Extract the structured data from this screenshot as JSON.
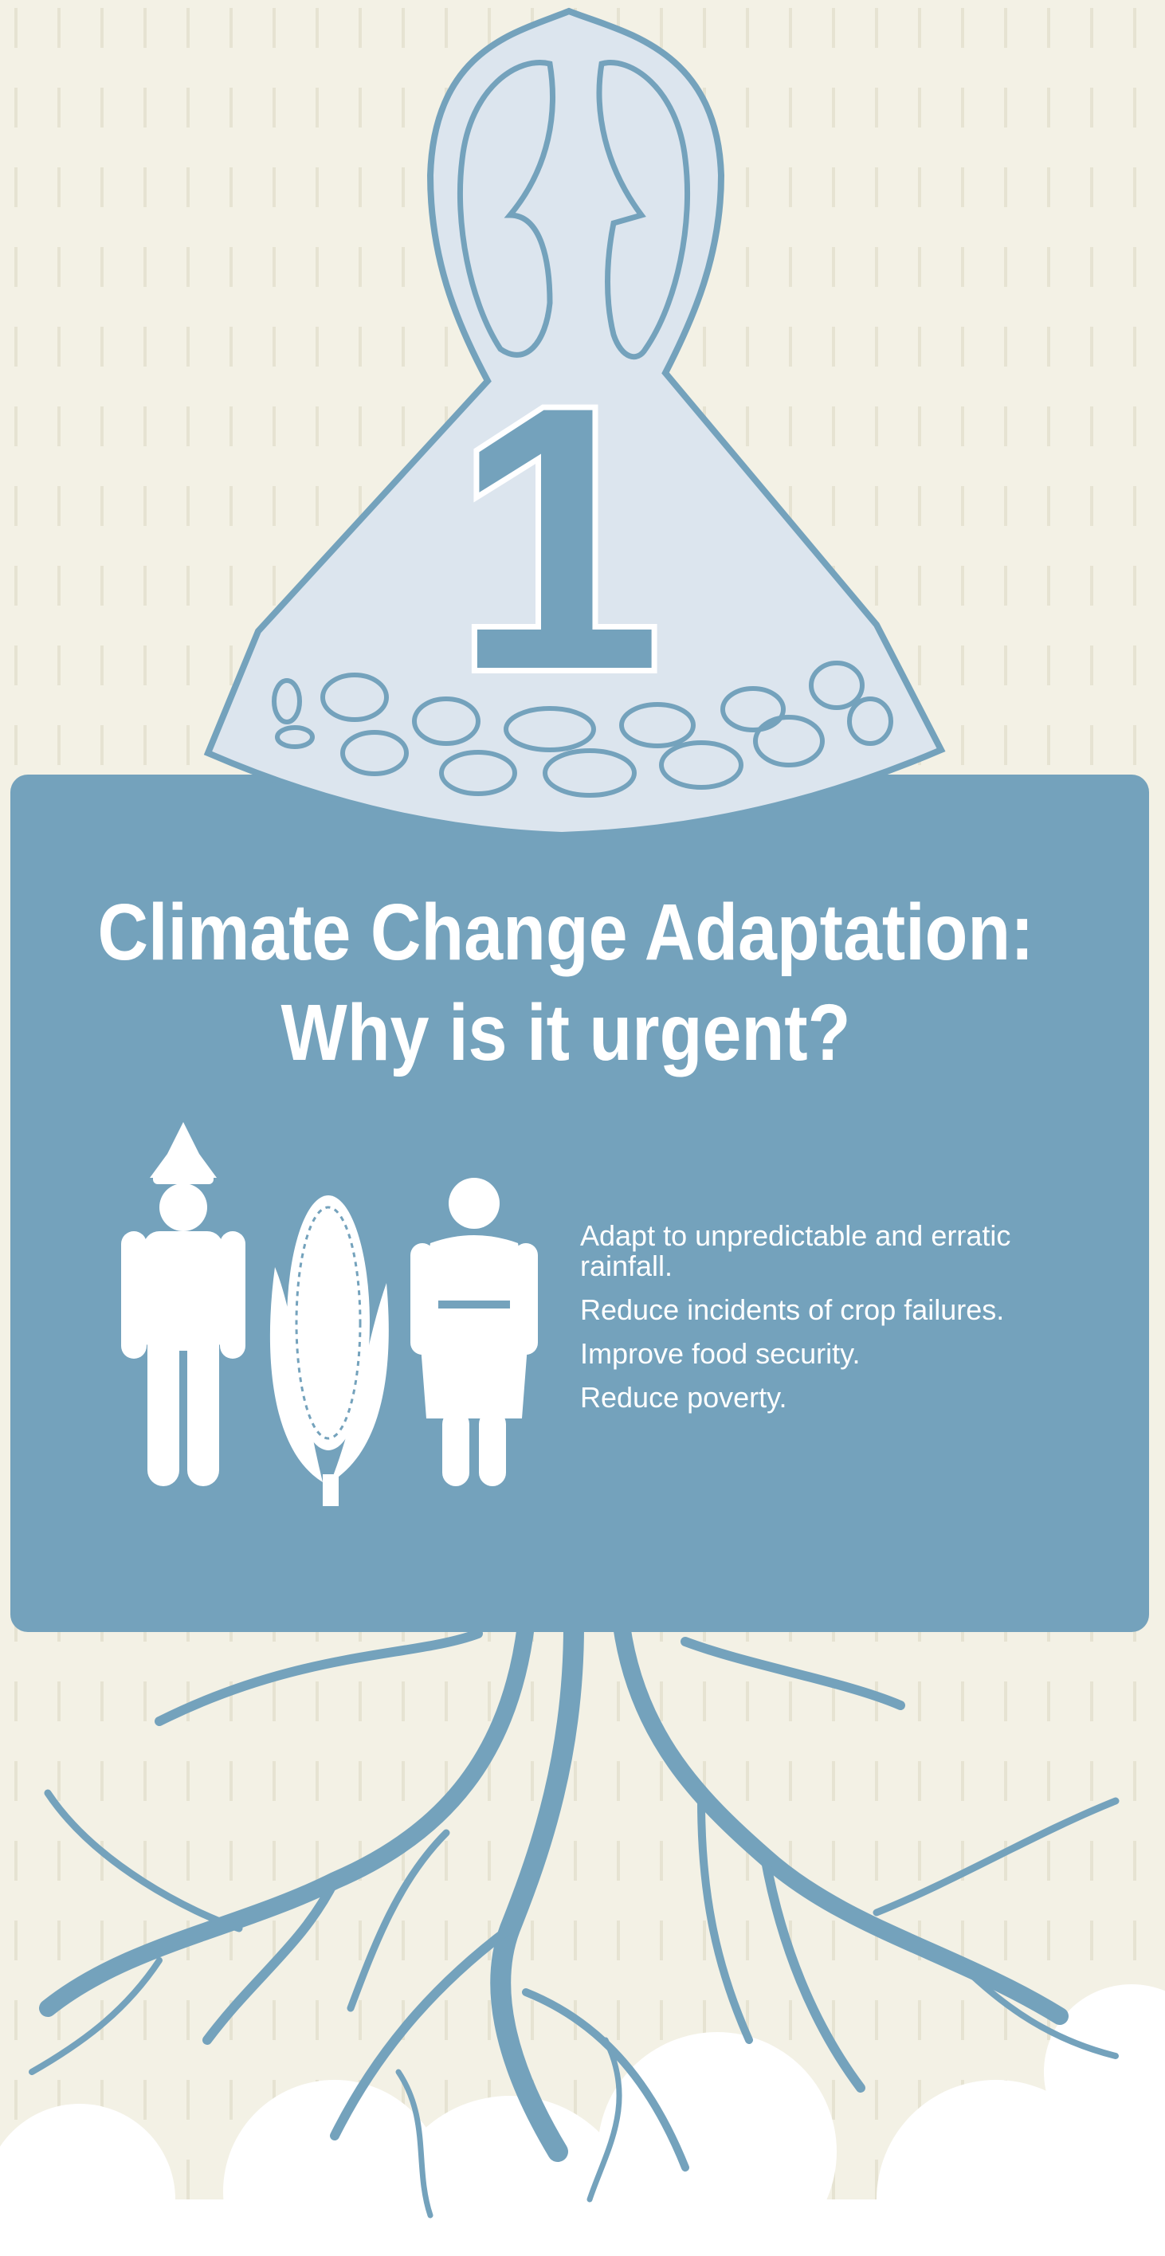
{
  "badge_number": "1",
  "title": {
    "line1": "Climate Change Adaptation:",
    "line2": "Why is it urgent?"
  },
  "reasons": [
    "Adapt to unpredictable and erratic rainfall.",
    "Reduce incidents of crop failures.",
    "Improve food security.",
    "Reduce poverty."
  ]
}
